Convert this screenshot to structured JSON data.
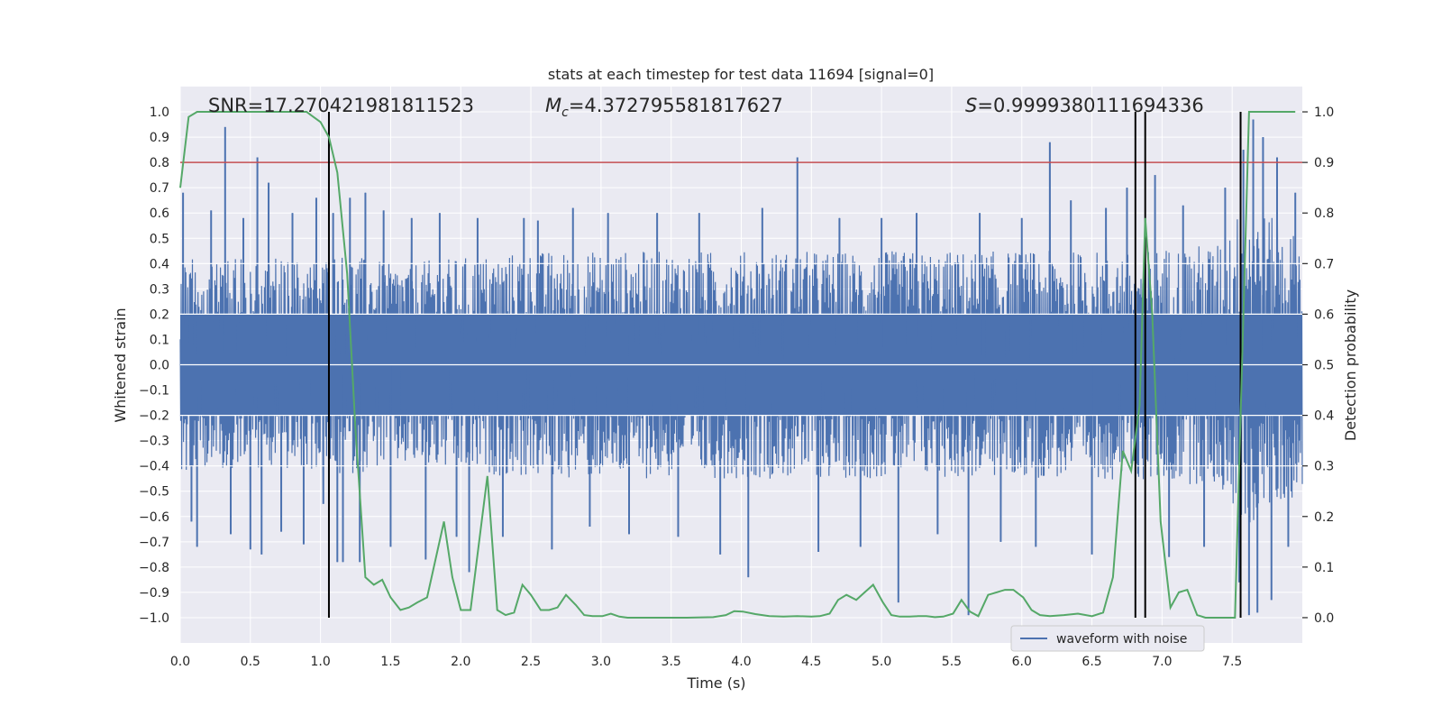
{
  "chart_data": {
    "type": "line",
    "title": "stats at each timestep for test data 11694 [signal=0]",
    "xlabel": "Time (s)",
    "ylabel": "Whitened strain",
    "y2label": "Detection probability",
    "xlim": [
      0.0,
      8.0
    ],
    "ylim": [
      -1.1,
      1.1
    ],
    "y2lim": [
      -0.05,
      1.05
    ],
    "x_ticks": [
      0.0,
      0.5,
      1.0,
      1.5,
      2.0,
      2.5,
      3.0,
      3.5,
      4.0,
      4.5,
      5.0,
      5.5,
      6.0,
      6.5,
      7.0,
      7.5
    ],
    "x_tick_labels": [
      "0.0",
      "0.5",
      "1.0",
      "1.5",
      "2.0",
      "2.5",
      "3.0",
      "3.5",
      "4.0",
      "4.5",
      "5.0",
      "5.5",
      "6.0",
      "6.5",
      "7.0",
      "7.5"
    ],
    "y_ticks": [
      1.0,
      0.9,
      0.8,
      0.7,
      0.6,
      0.5,
      0.4,
      0.3,
      0.2,
      0.1,
      0.0,
      -0.1,
      -0.2,
      -0.3,
      -0.4,
      -0.5,
      -0.6,
      -0.7,
      -0.8,
      -0.9,
      -1.0
    ],
    "y_tick_labels": [
      "1.0",
      "0.9",
      "0.8",
      "0.7",
      "0.6",
      "0.5",
      "0.4",
      "0.3",
      "0.2",
      "0.1",
      "0.0",
      "−0.1",
      "−0.2",
      "−0.3",
      "−0.4",
      "−0.5",
      "−0.6",
      "−0.7",
      "−0.8",
      "−0.9",
      "−1.0"
    ],
    "y2_ticks": [
      1.0,
      0.9,
      0.8,
      0.7,
      0.6,
      0.5,
      0.4,
      0.3,
      0.2,
      0.1,
      0.0
    ],
    "y2_tick_labels": [
      "1.0",
      "0.9",
      "0.8",
      "0.7",
      "0.6",
      "0.5",
      "0.4",
      "0.3",
      "0.2",
      "0.1",
      "0.0"
    ],
    "grid": true,
    "legend": {
      "position": "bottom-right",
      "entries": [
        "waveform with noise"
      ]
    },
    "annotations": {
      "snr": "SNR=17.270421981811523",
      "mc_symbol": "M",
      "mc_sub": "c",
      "mc_value": "=4.372795581817627",
      "s_symbol": "S",
      "s_value": "=0.9999380111694336"
    },
    "threshold_line": {
      "y": 0.8,
      "color": "#c44e52"
    },
    "vertical_lines": [
      1.06,
      6.81,
      6.88,
      7.56
    ],
    "colors": {
      "waveform": "#4c72b0",
      "probability": "#55a868",
      "axes_bg": "#eaeaf2",
      "vlines": "#000000"
    },
    "series": [
      {
        "name": "waveform with noise",
        "axis": "left",
        "envelope": [
          [
            0.0,
            0.42,
            -0.42
          ],
          [
            1.0,
            0.42,
            -0.42
          ],
          [
            1.1,
            0.45,
            -0.45
          ],
          [
            1.5,
            0.4,
            -0.4
          ],
          [
            2.5,
            0.45,
            -0.45
          ],
          [
            3.5,
            0.45,
            -0.45
          ],
          [
            4.5,
            0.45,
            -0.45
          ],
          [
            5.5,
            0.45,
            -0.45
          ],
          [
            6.5,
            0.45,
            -0.45
          ],
          [
            7.4,
            0.48,
            -0.48
          ],
          [
            7.6,
            0.65,
            -0.65
          ],
          [
            8.0,
            0.5,
            -0.5
          ]
        ],
        "peaks": [
          [
            0.02,
            0.68
          ],
          [
            0.08,
            -0.62
          ],
          [
            0.12,
            -0.72
          ],
          [
            0.22,
            0.61
          ],
          [
            0.32,
            0.94
          ],
          [
            0.36,
            -0.67
          ],
          [
            0.45,
            0.58
          ],
          [
            0.5,
            -0.73
          ],
          [
            0.55,
            0.82
          ],
          [
            0.58,
            -0.75
          ],
          [
            0.63,
            0.72
          ],
          [
            0.72,
            -0.66
          ],
          [
            0.8,
            0.6
          ],
          [
            0.88,
            -0.71
          ],
          [
            0.97,
            0.66
          ],
          [
            1.02,
            -0.55
          ],
          [
            1.09,
            0.6
          ],
          [
            1.12,
            -0.78
          ],
          [
            1.16,
            -0.78
          ],
          [
            1.21,
            0.66
          ],
          [
            1.28,
            -0.78
          ],
          [
            1.32,
            0.68
          ],
          [
            1.45,
            0.61
          ],
          [
            1.5,
            -0.72
          ],
          [
            1.65,
            0.58
          ],
          [
            1.75,
            -0.77
          ],
          [
            1.85,
            0.6
          ],
          [
            1.97,
            -0.68
          ],
          [
            2.06,
            -0.82
          ],
          [
            2.12,
            0.58
          ],
          [
            2.3,
            -0.68
          ],
          [
            2.45,
            0.58
          ],
          [
            2.55,
            0.57
          ],
          [
            2.65,
            -0.73
          ],
          [
            2.8,
            0.62
          ],
          [
            2.92,
            -0.64
          ],
          [
            3.05,
            0.6
          ],
          [
            3.2,
            -0.67
          ],
          [
            3.4,
            0.6
          ],
          [
            3.55,
            -0.68
          ],
          [
            3.7,
            0.6
          ],
          [
            3.85,
            -0.75
          ],
          [
            4.05,
            -0.84
          ],
          [
            4.15,
            0.62
          ],
          [
            4.4,
            0.82
          ],
          [
            4.55,
            -0.74
          ],
          [
            4.7,
            0.58
          ],
          [
            4.85,
            -0.72
          ],
          [
            5.0,
            0.58
          ],
          [
            5.12,
            -0.94
          ],
          [
            5.25,
            0.6
          ],
          [
            5.4,
            -0.67
          ],
          [
            5.62,
            -0.99
          ],
          [
            5.7,
            0.6
          ],
          [
            5.85,
            -0.7
          ],
          [
            6.0,
            0.58
          ],
          [
            6.1,
            -0.72
          ],
          [
            6.2,
            0.88
          ],
          [
            6.35,
            0.65
          ],
          [
            6.5,
            -0.75
          ],
          [
            6.6,
            0.62
          ],
          [
            6.75,
            0.7
          ],
          [
            6.95,
            0.75
          ],
          [
            7.05,
            -0.76
          ],
          [
            7.15,
            0.63
          ],
          [
            7.3,
            -0.72
          ],
          [
            7.45,
            0.7
          ],
          [
            7.55,
            -0.86
          ],
          [
            7.58,
            0.85
          ],
          [
            7.62,
            -0.99
          ],
          [
            7.65,
            0.97
          ],
          [
            7.68,
            -0.98
          ],
          [
            7.72,
            0.9
          ],
          [
            7.78,
            -0.93
          ],
          [
            7.82,
            0.82
          ],
          [
            7.9,
            -0.72
          ],
          [
            7.95,
            0.68
          ]
        ]
      },
      {
        "name": "detection probability",
        "axis": "right",
        "x": [
          0.0,
          0.06,
          0.12,
          0.2,
          0.3,
          0.4,
          0.5,
          0.6,
          0.7,
          0.8,
          0.9,
          0.95,
          1.0,
          1.06,
          1.12,
          1.19,
          1.25,
          1.32,
          1.38,
          1.44,
          1.5,
          1.57,
          1.63,
          1.69,
          1.76,
          1.88,
          1.94,
          2.0,
          2.07,
          2.19,
          2.26,
          2.32,
          2.38,
          2.44,
          2.5,
          2.57,
          2.63,
          2.69,
          2.75,
          2.82,
          2.88,
          2.94,
          3.01,
          3.07,
          3.13,
          3.19,
          3.26,
          3.4,
          3.6,
          3.8,
          3.89,
          3.95,
          4.01,
          4.1,
          4.2,
          4.3,
          4.4,
          4.5,
          4.56,
          4.63,
          4.69,
          4.75,
          4.82,
          4.88,
          4.94,
          5.01,
          5.07,
          5.13,
          5.2,
          5.26,
          5.32,
          5.38,
          5.44,
          5.51,
          5.57,
          5.63,
          5.69,
          5.76,
          5.82,
          5.88,
          5.94,
          6.01,
          6.07,
          6.13,
          6.2,
          6.3,
          6.4,
          6.5,
          6.58,
          6.65,
          6.72,
          6.78,
          6.84,
          6.88,
          6.93,
          6.99,
          7.06,
          7.12,
          7.18,
          7.25,
          7.31,
          7.37,
          7.45,
          7.52,
          7.57,
          7.62,
          7.7,
          7.8,
          7.95
        ],
        "y": [
          0.85,
          0.99,
          1.0,
          1.0,
          1.0,
          1.0,
          1.0,
          1.0,
          1.0,
          1.0,
          1.0,
          0.99,
          0.98,
          0.95,
          0.88,
          0.68,
          0.37,
          0.08,
          0.065,
          0.075,
          0.04,
          0.015,
          0.02,
          0.03,
          0.04,
          0.19,
          0.08,
          0.015,
          0.015,
          0.28,
          0.015,
          0.005,
          0.01,
          0.065,
          0.045,
          0.015,
          0.015,
          0.02,
          0.045,
          0.025,
          0.005,
          0.003,
          0.003,
          0.008,
          0.002,
          0.0,
          0.0,
          0.0,
          0.0,
          0.001,
          0.005,
          0.013,
          0.012,
          0.007,
          0.003,
          0.002,
          0.003,
          0.002,
          0.003,
          0.008,
          0.035,
          0.045,
          0.035,
          0.05,
          0.065,
          0.03,
          0.005,
          0.002,
          0.002,
          0.003,
          0.003,
          0.001,
          0.002,
          0.008,
          0.035,
          0.012,
          0.003,
          0.045,
          0.05,
          0.055,
          0.055,
          0.04,
          0.015,
          0.005,
          0.003,
          0.005,
          0.008,
          0.003,
          0.01,
          0.08,
          0.33,
          0.29,
          0.42,
          0.79,
          0.6,
          0.19,
          0.02,
          0.05,
          0.055,
          0.005,
          0.0,
          0.0,
          0.0,
          0.0,
          0.5,
          1.0,
          1.0,
          1.0,
          1.0
        ]
      }
    ]
  }
}
